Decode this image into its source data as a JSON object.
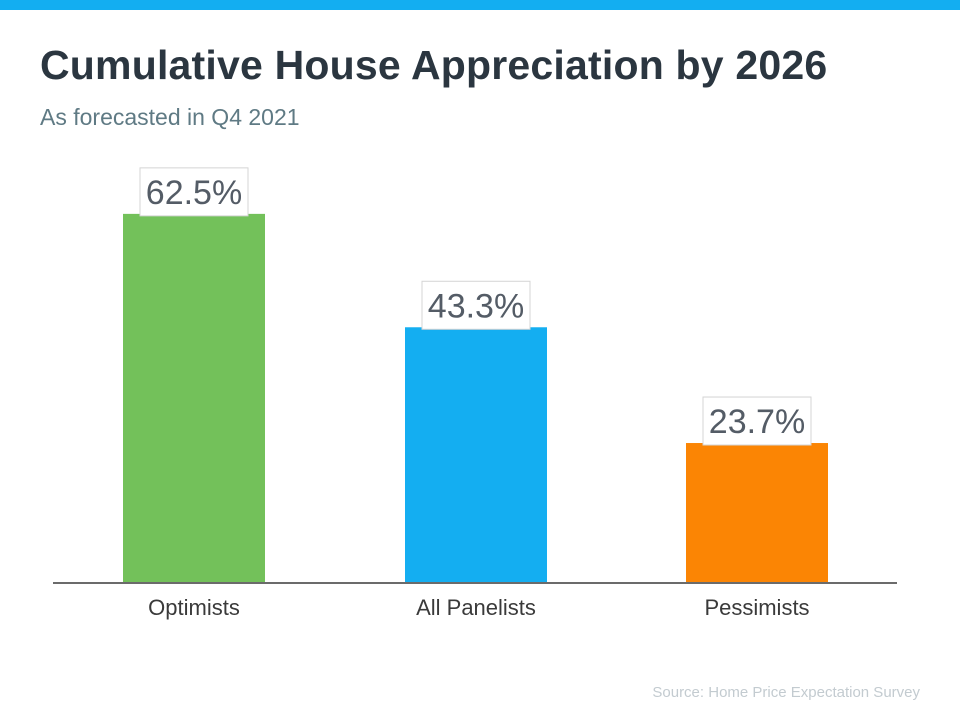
{
  "colors": {
    "top_bar": "#13aef1",
    "bar_optimists": "#73c15a",
    "bar_all_panelists": "#14aef1",
    "bar_pessimists": "#fb8504",
    "axis_line": "#6b6b6b",
    "label_box_border": "#d4d4d4",
    "label_text": "#545c66",
    "category_text": "#3a3a3a"
  },
  "chart_data": {
    "type": "bar",
    "title": "Cumulative House Appreciation by 2026",
    "subtitle": "As forecasted in Q4 2021",
    "categories": [
      "Optimists",
      "All Panelists",
      "Pessimists"
    ],
    "values": [
      62.5,
      43.3,
      23.7
    ],
    "value_labels": [
      "62.5%",
      "43.3%",
      "23.7%"
    ],
    "xlabel": "",
    "ylabel": "",
    "ylim": [
      0,
      74.5
    ],
    "grid": false,
    "legend": "none",
    "source": "Source: Home Price Expectation Survey"
  }
}
